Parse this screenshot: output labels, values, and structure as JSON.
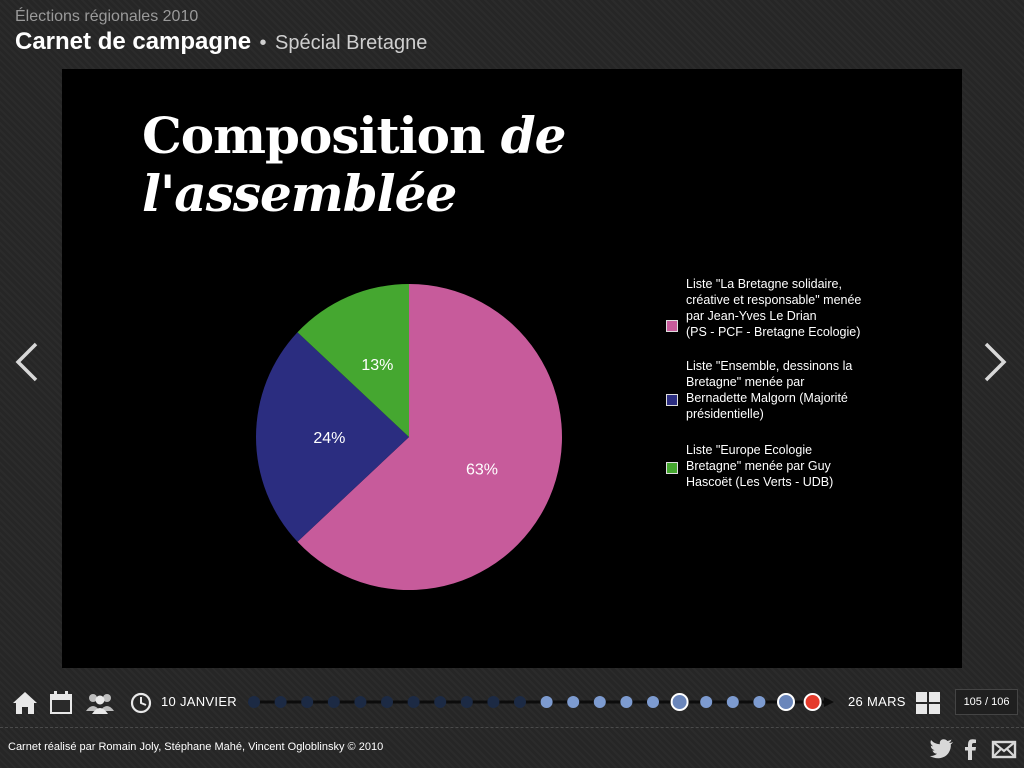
{
  "header": {
    "supertitle": "Élections régionales 2010",
    "title": "Carnet de campagne",
    "separator": "•",
    "subtitle": "Spécial Bretagne"
  },
  "slide": {
    "title_part1": "Composition ",
    "title_part2": "de l'assemblée"
  },
  "chart_data": {
    "type": "pie",
    "slices": [
      {
        "label": "Liste \"La Bretagne solidaire,\ncréative et responsable\" menée par Jean-Yves Le Drian\n(PS - PCF - Bretagne Ecologie)",
        "value": 63,
        "display": "63%",
        "color": "#c75b9b"
      },
      {
        "label": "Liste \"Ensemble, dessinons la\nBretagne\" menée par Bernadette Malgorn (Majorité présidentielle)",
        "value": 24,
        "display": "24%",
        "color": "#2b2d80"
      },
      {
        "label": "Liste \"Europe Ecologie Bretagne\" menée par Guy Hascoët (Les Verts - UDB)",
        "value": 13,
        "display": "13%",
        "color": "#45a730"
      }
    ],
    "start_angle_deg": 0,
    "direction": "clockwise",
    "legend_position": "right"
  },
  "nav": {
    "prev_icon": "chevron-left-icon",
    "next_icon": "chevron-right-icon"
  },
  "toolbar": {
    "home_icon": "home-icon",
    "calendar_icon": "calendar-icon",
    "people_icon": "people-icon",
    "clock_icon": "clock-icon",
    "grid_icon": "grid-icon"
  },
  "timeline": {
    "start_label": "10 JANVIER",
    "end_label": "26 MARS",
    "dots": [
      {
        "state": "dark"
      },
      {
        "state": "dark"
      },
      {
        "state": "dark"
      },
      {
        "state": "dark"
      },
      {
        "state": "dark"
      },
      {
        "state": "dark"
      },
      {
        "state": "dark"
      },
      {
        "state": "dark"
      },
      {
        "state": "dark"
      },
      {
        "state": "dark"
      },
      {
        "state": "dark"
      },
      {
        "state": "light"
      },
      {
        "state": "light"
      },
      {
        "state": "light"
      },
      {
        "state": "light"
      },
      {
        "state": "light"
      },
      {
        "state": "ringed"
      },
      {
        "state": "light"
      },
      {
        "state": "light"
      },
      {
        "state": "light"
      },
      {
        "state": "ringed"
      },
      {
        "state": "current"
      }
    ]
  },
  "pagination": {
    "label": "105 / 106"
  },
  "footer": {
    "credits": "Carnet réalisé par Romain Joly, Stéphane Mahé, Vincent Ogloblinsky © 2010",
    "twitter_icon": "twitter-icon",
    "facebook_icon": "facebook-icon",
    "mail_icon": "mail-icon"
  },
  "colors": {
    "background": "#262626",
    "stage": "#000000",
    "dot_dark": "#1c2a44",
    "dot_light": "#7d9bd0",
    "dot_current": "#e53a2b"
  }
}
